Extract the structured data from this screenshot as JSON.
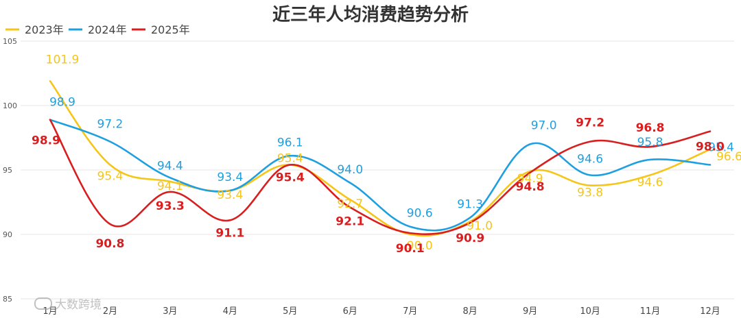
{
  "chart_data": {
    "type": "line",
    "title": "近三年人均消费趋势分析",
    "categories": [
      "1月",
      "2月",
      "3月",
      "4月",
      "5月",
      "6月",
      "7月",
      "8月",
      "9月",
      "10月",
      "11月",
      "12月"
    ],
    "ylim": [
      85,
      105
    ],
    "yticks": [
      85,
      90,
      95,
      100,
      105
    ],
    "grid": true,
    "legend": "top-left",
    "series": [
      {
        "name": "2023年",
        "color": "#F5C518",
        "values": [
          101.9,
          95.4,
          94.1,
          93.4,
          95.4,
          92.7,
          90.0,
          91.0,
          94.9,
          93.8,
          94.6,
          96.6
        ],
        "bold": false
      },
      {
        "name": "2024年",
        "color": "#1E9FE0",
        "values": [
          98.9,
          97.2,
          94.4,
          93.4,
          96.1,
          94.0,
          90.6,
          91.3,
          97.0,
          94.6,
          95.8,
          95.4
        ],
        "bold": false
      },
      {
        "name": "2025年",
        "color": "#D81E1E",
        "values": [
          98.9,
          90.8,
          93.3,
          91.1,
          95.4,
          92.1,
          90.1,
          90.9,
          94.8,
          97.2,
          96.8,
          98.0
        ],
        "bold": true
      }
    ]
  },
  "watermark": {
    "text": "大数跨境"
  }
}
